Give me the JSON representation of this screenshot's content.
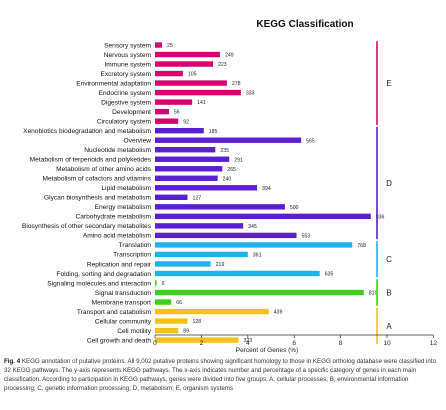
{
  "chart_data": {
    "type": "bar",
    "orientation": "horizontal",
    "title": "KEGG Classification",
    "xlabel": "Percent of Genes (%)",
    "xlim": [
      0,
      12
    ],
    "x_ticks": [
      0,
      2,
      4,
      6,
      8,
      10,
      12
    ],
    "grid": false,
    "categories": [
      "Sensory system",
      "Nervous system",
      "Immune system",
      "Excretory system",
      "Environmental adaptation",
      "Endocrine system",
      "Digestive system",
      "Development",
      "Circulatory system",
      "Xenobiotics biodegradation and metabolism",
      "Overview",
      "Nucleotide metabolism",
      "Metabolism of terpenoids and polyketides",
      "Metabolism of other amino acids",
      "Metabolism of cofactors and vitamins",
      "Lipid metabolism",
      "Glycan biosynthesis and metabolism",
      "Energy metabolism",
      "Carbohydrate metabolism",
      "Biosynthesis of other secondary metabolites",
      "Amino acid metabolism",
      "Translation",
      "Transcription",
      "Replication and repair",
      "Folding, sorting and degradation",
      "Signaling molecules and interaction",
      "Signal transduction",
      "Membrane transport",
      "Transport and catabolism",
      "Cellular community",
      "Cell motility",
      "Cell growth and death"
    ],
    "counts": [
      25,
      249,
      223,
      105,
      278,
      333,
      141,
      56,
      92,
      185,
      565,
      235,
      291,
      265,
      240,
      394,
      127,
      500,
      836,
      345,
      553,
      768,
      361,
      219,
      635,
      6,
      810,
      66,
      439,
      128,
      89,
      323
    ],
    "percent": [
      0.3,
      2.8,
      2.5,
      1.2,
      3.1,
      3.7,
      1.6,
      0.6,
      1.0,
      2.1,
      6.3,
      2.6,
      3.2,
      2.9,
      2.7,
      4.4,
      1.4,
      5.6,
      9.3,
      3.8,
      6.1,
      8.5,
      4.0,
      2.4,
      7.1,
      0.07,
      9.0,
      0.7,
      4.9,
      1.4,
      1.0,
      3.6
    ],
    "group_of": [
      "E",
      "E",
      "E",
      "E",
      "E",
      "E",
      "E",
      "E",
      "E",
      "D",
      "D",
      "D",
      "D",
      "D",
      "D",
      "D",
      "D",
      "D",
      "D",
      "D",
      "D",
      "C",
      "C",
      "C",
      "C",
      "B",
      "B",
      "B",
      "A",
      "A",
      "A",
      "A"
    ],
    "groups": [
      {
        "name": "E",
        "color": "#d6006f"
      },
      {
        "name": "D",
        "color": "#5a1fd1"
      },
      {
        "name": "C",
        "color": "#1fb3e8"
      },
      {
        "name": "B",
        "color": "#3fcf1f"
      },
      {
        "name": "A",
        "color": "#f2c11a"
      }
    ],
    "caption_label": "Fig. 4",
    "caption_text": "KEGG annotation of putative proteins. All 9,002 putative proteins showing significant homology to those in KEGG ortholog database were classified into 32 KEGG pathways. The y-axis represents KEGG pathways. The x-axis indicates number and percentage of a specific category of genes in each main classification. According to participation in KEGG pathways, genes were divided into five groups: A, cellular processes; B, environmental information processing; C, genetic information processing; D, metabolism; E, organism systems"
  }
}
